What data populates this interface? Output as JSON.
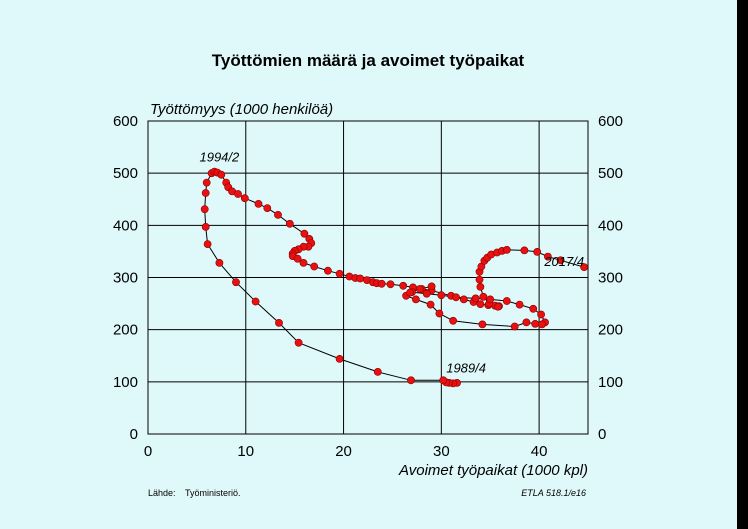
{
  "chart_data": {
    "type": "scatter",
    "title": "Työttömien määrä ja avoimet työpaikat",
    "xlabel": "Avoimet työpaikat (1000 kpl)",
    "ylabel": "Työttömyys (1000 henkilöä)",
    "xlim": [
      0,
      45
    ],
    "ylim": [
      0,
      600
    ],
    "x_ticks": [
      "0",
      "10",
      "20",
      "30",
      "40"
    ],
    "y_ticks": [
      "0",
      "100",
      "200",
      "300",
      "400",
      "500",
      "600"
    ],
    "grid": true,
    "connected_points": true,
    "marker_color": "#e81010",
    "line_color": "#000000",
    "annotations": [
      {
        "text": "1994/2",
        "x": 7.3,
        "y": 505
      },
      {
        "text": "1989/4",
        "x": 30.5,
        "y": 101
      },
      {
        "text": "2017/4",
        "x": 44.6,
        "y": 305
      }
    ],
    "series": [
      {
        "x": [
          31.6,
          31.2,
          30.8,
          30.5,
          30.2,
          26.9,
          23.5,
          19.6,
          15.4,
          13.4,
          11.0,
          9.0,
          7.3,
          6.1,
          5.9,
          5.8,
          5.9,
          6.0,
          6.5,
          6.8,
          7.1,
          7.5,
          8.0,
          8.2,
          8.6,
          9.2,
          9.9,
          11.3,
          12.2,
          13.3,
          14.5,
          16.0,
          16.5,
          16.7,
          16.4,
          15.9,
          15.4,
          15.0,
          14.8,
          14.8,
          15.3,
          15.9,
          17.0,
          18.4,
          19.6,
          20.6,
          21.2,
          21.7,
          22.4,
          23.0,
          23.4,
          23.9,
          24.8,
          26.1,
          27.1,
          28.0,
          29.0,
          31.0,
          32.3,
          33.3,
          34.0,
          34.8,
          35.5,
          35.9,
          35.8,
          34.9,
          34.3,
          34.0,
          33.9,
          33.9,
          34.1,
          34.4,
          34.7,
          35.1,
          35.7,
          36.2,
          36.7,
          38.5,
          39.8,
          40.9,
          42.2,
          44.6
        ],
        "y": [
          98,
          97,
          98,
          99,
          103,
          103,
          119,
          144,
          175,
          213,
          254,
          291,
          328,
          364,
          397,
          431,
          462,
          482,
          500,
          503,
          501,
          497,
          482,
          473,
          465,
          460,
          452,
          441,
          433,
          420,
          403,
          384,
          374,
          366,
          359,
          359,
          354,
          351,
          346,
          341,
          336,
          328,
          321,
          313,
          307,
          302,
          299,
          298,
          295,
          291,
          289,
          288,
          287,
          284,
          281,
          278,
          275,
          265,
          258,
          253,
          249,
          247,
          246,
          245,
          244,
          250,
          263,
          282,
          296,
          311,
          321,
          332,
          338,
          344,
          348,
          351,
          353,
          352,
          349,
          340,
          333,
          320
        ]
      },
      {
        "x": [
          27.0,
          28.5,
          30.0,
          31.5,
          33.5,
          35.0,
          36.7,
          38.0,
          39.4,
          40.2,
          40.6,
          40.3,
          39.6,
          38.7,
          37.5,
          34.2,
          31.2,
          29.8,
          28.9,
          27.4,
          26.4,
          26.8,
          27.8,
          29.0
        ],
        "y": [
          272,
          269,
          266,
          262,
          260,
          258,
          255,
          248,
          240,
          229,
          214,
          210,
          211,
          214,
          206,
          210,
          217,
          231,
          248,
          258,
          265,
          271,
          278,
          283
        ]
      }
    ]
  },
  "footer": {
    "source_label": "Lähde:",
    "source_value": "Työministeriö.",
    "code": "ETLA 518.1/e16"
  }
}
